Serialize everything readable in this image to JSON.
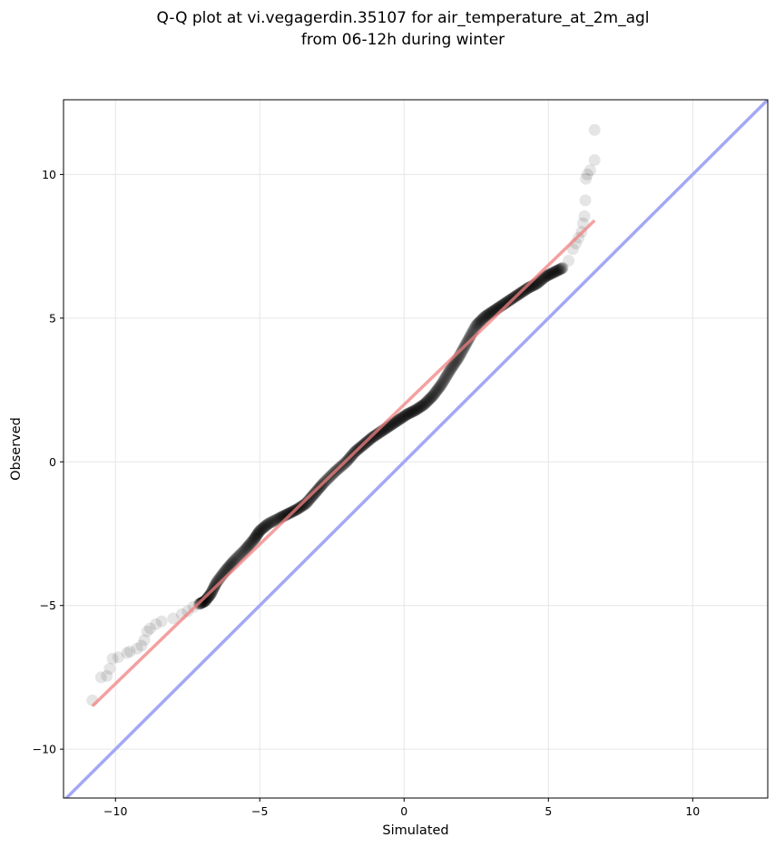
{
  "chart_data": {
    "type": "scatter",
    "title_lines": [
      "Q-Q plot at vi.vegagerdin.35107 for air_temperature_at_2m_agl",
      "from 06-12h during winter"
    ],
    "xlabel": "Simulated",
    "ylabel": "Observed",
    "xlim": [
      -11.8,
      12.6
    ],
    "ylim": [
      -11.7,
      12.6
    ],
    "xticks": [
      -10,
      -5,
      0,
      5,
      10
    ],
    "yticks": [
      -10,
      -5,
      0,
      5,
      10
    ],
    "xtick_labels": [
      "−10",
      "−5",
      "0",
      "5",
      "10"
    ],
    "ytick_labels": [
      "−10",
      "−5",
      "0",
      "5",
      "10"
    ],
    "grid": true,
    "colors": {
      "points": "#000000",
      "fit_line": "#f08080",
      "identity_line": "#a3a8f5",
      "grid": "#e6e6e6"
    },
    "series": [
      {
        "kind": "quantiles",
        "points": [
          [
            -10.8,
            -8.3
          ],
          [
            -10.5,
            -7.5
          ],
          [
            -10.3,
            -7.45
          ],
          [
            -10.2,
            -7.2
          ],
          [
            -10.1,
            -6.85
          ],
          [
            -9.9,
            -6.8
          ],
          [
            -9.6,
            -6.65
          ],
          [
            -9.5,
            -6.6
          ],
          [
            -9.25,
            -6.5
          ],
          [
            -9.1,
            -6.4
          ],
          [
            -9.0,
            -6.2
          ],
          [
            -8.9,
            -5.9
          ],
          [
            -8.8,
            -5.8
          ],
          [
            -8.6,
            -5.65
          ],
          [
            -8.4,
            -5.55
          ],
          [
            -8.0,
            -5.45
          ],
          [
            -7.7,
            -5.3
          ],
          [
            -7.5,
            -5.2
          ],
          [
            -7.3,
            -5.05
          ],
          [
            -7.1,
            -4.95
          ],
          [
            -6.9,
            -4.85
          ],
          [
            -6.7,
            -4.6
          ],
          [
            -6.5,
            -4.2
          ],
          [
            -6.2,
            -3.8
          ],
          [
            -5.9,
            -3.45
          ],
          [
            -5.5,
            -3.05
          ],
          [
            -5.2,
            -2.7
          ],
          [
            -5.0,
            -2.4
          ],
          [
            -4.7,
            -2.15
          ],
          [
            -4.3,
            -1.95
          ],
          [
            -4.0,
            -1.8
          ],
          [
            -3.7,
            -1.65
          ],
          [
            -3.4,
            -1.45
          ],
          [
            -3.1,
            -1.1
          ],
          [
            -2.8,
            -0.75
          ],
          [
            -2.4,
            -0.35
          ],
          [
            -2.0,
            0.0
          ],
          [
            -1.7,
            0.35
          ],
          [
            -1.4,
            0.6
          ],
          [
            -1.1,
            0.85
          ],
          [
            -0.8,
            1.05
          ],
          [
            -0.5,
            1.25
          ],
          [
            -0.2,
            1.45
          ],
          [
            0.1,
            1.65
          ],
          [
            0.4,
            1.8
          ],
          [
            0.7,
            2.0
          ],
          [
            1.0,
            2.3
          ],
          [
            1.3,
            2.7
          ],
          [
            1.6,
            3.2
          ],
          [
            1.9,
            3.65
          ],
          [
            2.2,
            4.2
          ],
          [
            2.5,
            4.75
          ],
          [
            2.8,
            5.05
          ],
          [
            3.1,
            5.25
          ],
          [
            3.4,
            5.45
          ],
          [
            3.7,
            5.65
          ],
          [
            4.0,
            5.85
          ],
          [
            4.3,
            6.05
          ],
          [
            4.6,
            6.2
          ],
          [
            4.9,
            6.45
          ],
          [
            5.2,
            6.6
          ],
          [
            5.5,
            6.75
          ],
          [
            5.7,
            7.0
          ],
          [
            5.85,
            7.4
          ],
          [
            5.95,
            7.6
          ],
          [
            6.05,
            7.8
          ],
          [
            6.15,
            8.0
          ],
          [
            6.2,
            8.3
          ],
          [
            6.25,
            8.55
          ],
          [
            6.28,
            9.1
          ],
          [
            6.3,
            9.85
          ],
          [
            6.35,
            10.0
          ],
          [
            6.45,
            10.15
          ],
          [
            6.6,
            10.5
          ],
          [
            6.6,
            11.55
          ]
        ]
      },
      {
        "kind": "fit_line",
        "points": [
          [
            -10.8,
            -8.5
          ],
          [
            6.6,
            8.4
          ]
        ]
      },
      {
        "kind": "identity_line",
        "points": [
          [
            -12.0,
            -12.0
          ],
          [
            13.0,
            13.0
          ]
        ]
      }
    ]
  }
}
